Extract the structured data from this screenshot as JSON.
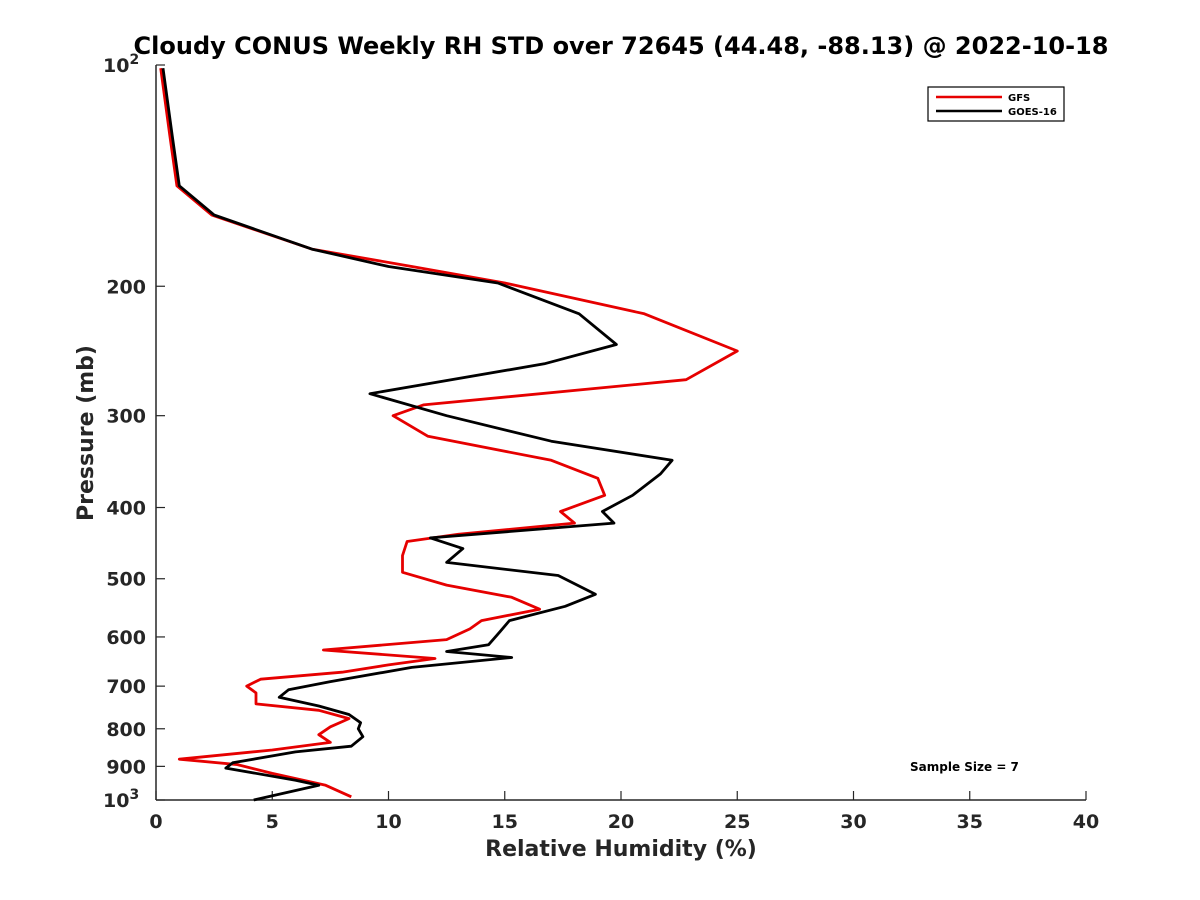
{
  "chart_data": {
    "type": "line",
    "title": "Cloudy CONUS Weekly RH STD over 72645 (44.48, -88.13) @ 2022-10-18",
    "xlabel": "Relative Humidity (%)",
    "ylabel": "Pressure (mb)",
    "xlim": [
      0,
      40
    ],
    "ylim": [
      100,
      1000
    ],
    "yscale": "log",
    "yreversed": true,
    "x_ticks": [
      0,
      5,
      10,
      15,
      20,
      25,
      30,
      35,
      40
    ],
    "x_tick_labels": [
      "0",
      "5",
      "10",
      "15",
      "20",
      "25",
      "30",
      "35",
      "40"
    ],
    "y_ticks": [
      100,
      200,
      300,
      400,
      500,
      600,
      700,
      800,
      900,
      1000
    ],
    "y_tick_labels": [
      "10^2",
      "200",
      "300",
      "400",
      "500",
      "600",
      "700",
      "800",
      "900",
      "10^3"
    ],
    "y_ticks_exponent": [
      "2",
      "",
      "",
      "",
      "",
      "",
      "",
      "",
      "",
      "3"
    ],
    "legend_position": "top-right",
    "annotation": "Sample Size = 7",
    "series": [
      {
        "name": "GFS",
        "color": "#e60000",
        "points": [
          [
            8.4,
            990
          ],
          [
            7.3,
            955
          ],
          [
            5.0,
            920
          ],
          [
            3.5,
            895
          ],
          [
            1.0,
            880
          ],
          [
            5.0,
            855
          ],
          [
            7.5,
            835
          ],
          [
            7.0,
            815
          ],
          [
            7.5,
            795
          ],
          [
            8.3,
            775
          ],
          [
            7.0,
            755
          ],
          [
            4.3,
            740
          ],
          [
            4.3,
            715
          ],
          [
            3.9,
            700
          ],
          [
            4.5,
            685
          ],
          [
            8.0,
            670
          ],
          [
            10.0,
            655
          ],
          [
            12.0,
            642
          ],
          [
            7.2,
            625
          ],
          [
            12.5,
            605
          ],
          [
            13.5,
            585
          ],
          [
            14.0,
            570
          ],
          [
            16.5,
            550
          ],
          [
            15.3,
            530
          ],
          [
            12.5,
            510
          ],
          [
            10.6,
            490
          ],
          [
            10.6,
            465
          ],
          [
            10.8,
            445
          ],
          [
            13.0,
            435
          ],
          [
            18.0,
            420
          ],
          [
            17.4,
            405
          ],
          [
            19.3,
            385
          ],
          [
            19.0,
            365
          ],
          [
            17.0,
            345
          ],
          [
            11.7,
            320
          ],
          [
            10.2,
            300
          ],
          [
            11.5,
            290
          ],
          [
            22.8,
            268
          ],
          [
            25.0,
            245
          ],
          [
            21.0,
            218
          ],
          [
            15.0,
            198
          ],
          [
            11.0,
            188
          ],
          [
            6.7,
            178
          ],
          [
            2.4,
            160
          ],
          [
            0.9,
            146
          ],
          [
            0.6,
            125
          ],
          [
            0.2,
            101
          ]
        ]
      },
      {
        "name": "GOES-16",
        "color": "#000000",
        "points": [
          [
            4.2,
            1000
          ],
          [
            7.0,
            955
          ],
          [
            6.0,
            940
          ],
          [
            3.0,
            905
          ],
          [
            3.3,
            890
          ],
          [
            6.0,
            860
          ],
          [
            8.4,
            845
          ],
          [
            8.9,
            820
          ],
          [
            8.7,
            800
          ],
          [
            8.8,
            785
          ],
          [
            8.3,
            765
          ],
          [
            7.0,
            745
          ],
          [
            5.3,
            725
          ],
          [
            5.7,
            708
          ],
          [
            7.5,
            690
          ],
          [
            11.0,
            660
          ],
          [
            15.3,
            640
          ],
          [
            12.5,
            628
          ],
          [
            14.3,
            615
          ],
          [
            14.8,
            590
          ],
          [
            15.2,
            570
          ],
          [
            17.6,
            545
          ],
          [
            18.9,
            525
          ],
          [
            17.3,
            495
          ],
          [
            12.5,
            475
          ],
          [
            13.2,
            455
          ],
          [
            11.8,
            440
          ],
          [
            19.7,
            420
          ],
          [
            19.2,
            405
          ],
          [
            20.5,
            385
          ],
          [
            21.7,
            360
          ],
          [
            22.2,
            345
          ],
          [
            17.0,
            325
          ],
          [
            12.5,
            300
          ],
          [
            9.2,
            280
          ],
          [
            16.7,
            255
          ],
          [
            19.8,
            240
          ],
          [
            18.2,
            218
          ],
          [
            14.7,
            198
          ],
          [
            10.0,
            188
          ],
          [
            6.7,
            178
          ],
          [
            2.5,
            160
          ],
          [
            1.0,
            146
          ],
          [
            0.7,
            125
          ],
          [
            0.3,
            101
          ]
        ]
      }
    ]
  }
}
